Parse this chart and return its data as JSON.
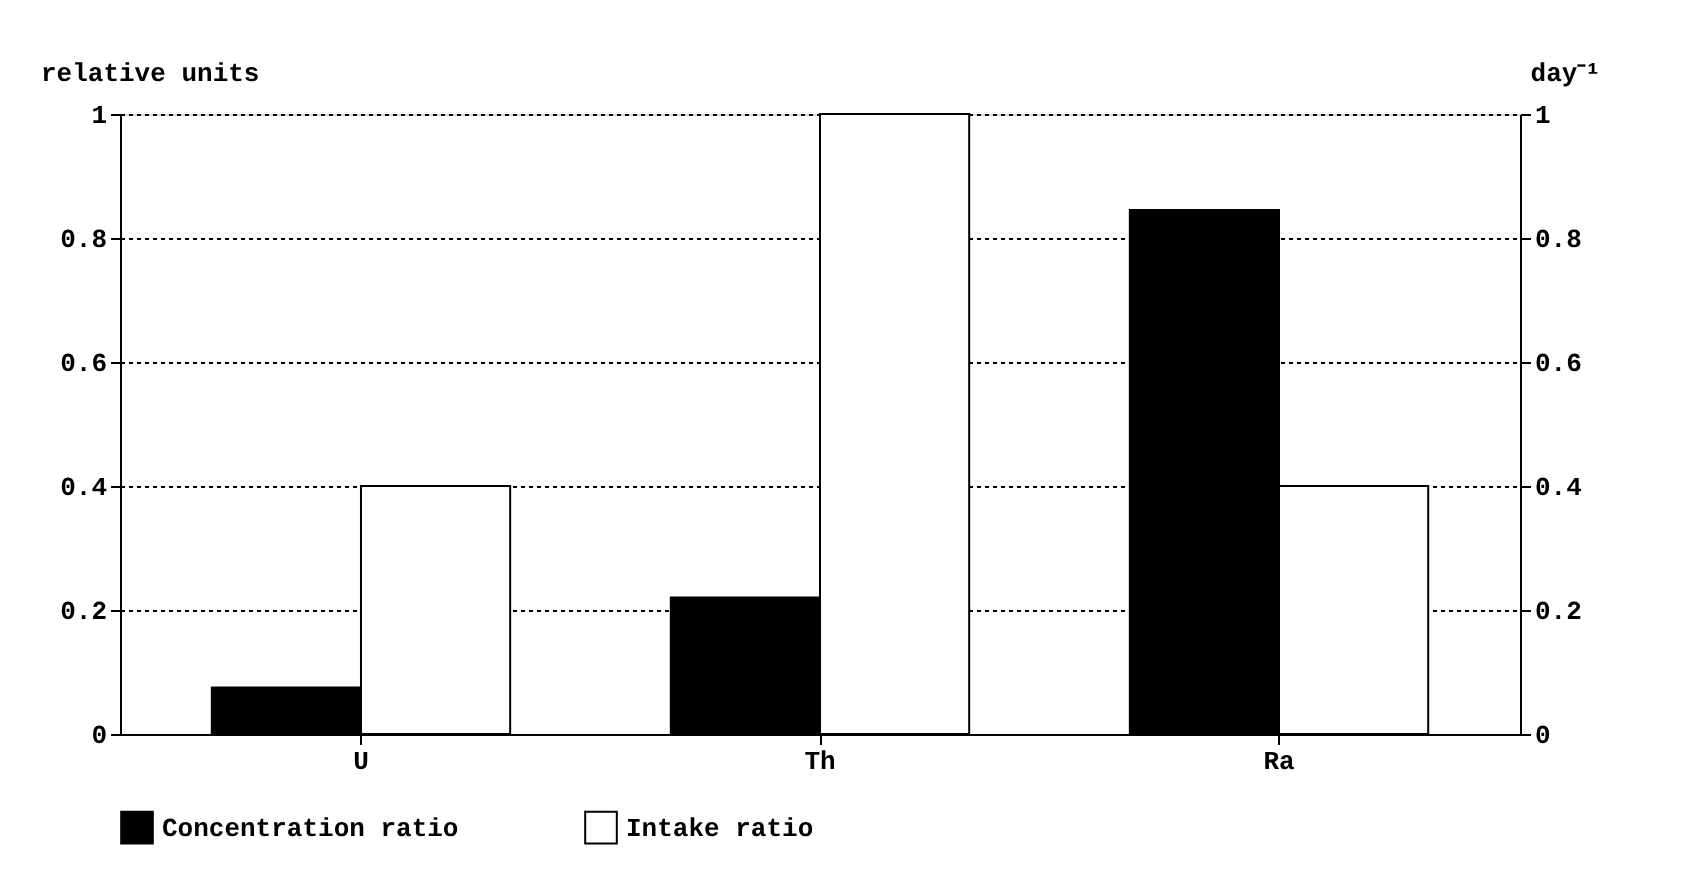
{
  "chart_data": {
    "type": "bar",
    "categories": [
      "U",
      "Th",
      "Ra"
    ],
    "ylabel": "relative units",
    "y2label": "day⁻¹",
    "ylim": [
      0,
      1
    ],
    "yticks": [
      0,
      0.2,
      0.4,
      0.6,
      0.8,
      1
    ],
    "y2lim": [
      0,
      1
    ],
    "y2ticks": [
      0,
      0.2,
      0.4,
      0.6,
      0.8,
      1
    ],
    "grid": "y",
    "legend": "bottom",
    "series": [
      {
        "name": "Concentration ratio",
        "color": "#000000",
        "values": [
          0.075,
          0.22,
          0.845
        ]
      },
      {
        "name": "Intake ratio",
        "color": "#ffffff",
        "axis": "y2",
        "values": [
          0.4,
          1.0,
          0.4
        ]
      }
    ]
  }
}
